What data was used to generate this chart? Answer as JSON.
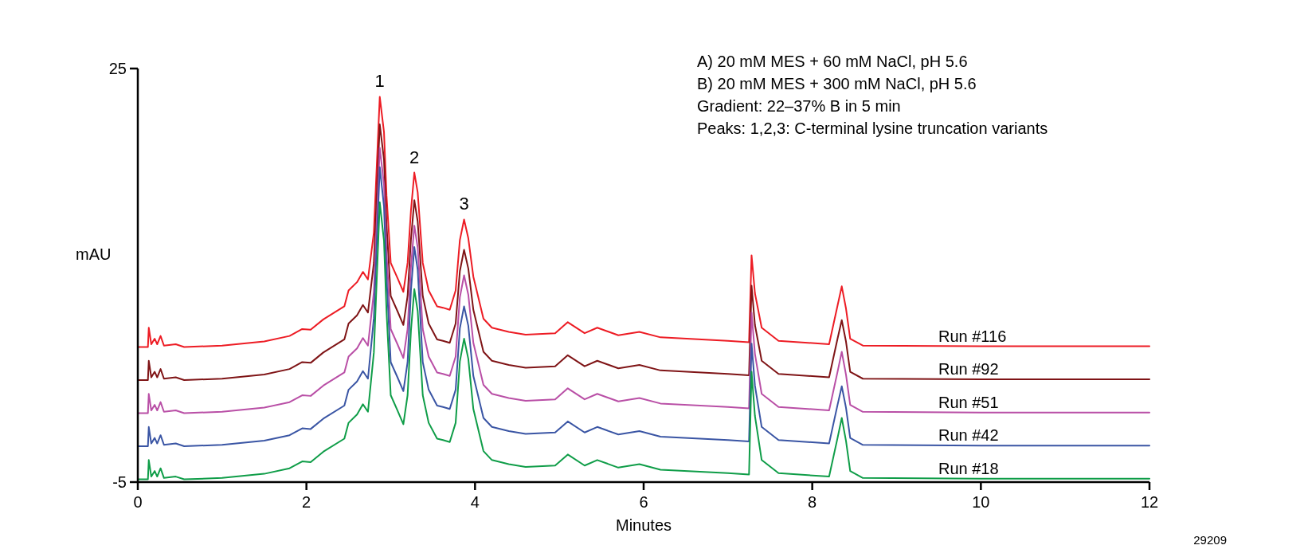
{
  "chart_data": {
    "type": "line",
    "xlabel": "Minutes",
    "ylabel": "mAU",
    "xlim": [
      0,
      12
    ],
    "xticks": [
      0,
      2,
      4,
      6,
      8,
      10,
      12
    ],
    "ylim": [
      -5,
      25
    ],
    "yticks": [
      -5,
      25
    ],
    "grid": false,
    "legend": false,
    "marker": "none",
    "line_style": "solid",
    "x": [
      0,
      0.12,
      0.13,
      0.16,
      0.2,
      0.23,
      0.27,
      0.31,
      0.45,
      0.55,
      1.0,
      1.5,
      1.8,
      1.95,
      2.05,
      2.2,
      2.45,
      2.5,
      2.6,
      2.67,
      2.73,
      2.8,
      2.87,
      2.92,
      2.95,
      3.0,
      3.08,
      3.15,
      3.2,
      3.24,
      3.28,
      3.32,
      3.38,
      3.45,
      3.55,
      3.62,
      3.7,
      3.77,
      3.82,
      3.87,
      3.92,
      3.98,
      4.1,
      4.2,
      4.4,
      4.6,
      4.95,
      5.1,
      5.3,
      5.45,
      5.7,
      5.95,
      6.2,
      7.0,
      7.25,
      7.28,
      7.32,
      7.4,
      7.6,
      8.2,
      8.3,
      8.35,
      8.4,
      8.45,
      8.6,
      10,
      12
    ],
    "series": [
      {
        "name": "Run #116",
        "color": "#ed1c24",
        "values": [
          4.8,
          4.8,
          6.2,
          5.0,
          5.4,
          5.0,
          5.6,
          4.9,
          5.0,
          4.8,
          4.9,
          5.2,
          5.6,
          6.1,
          6.05,
          6.8,
          7.75,
          8.9,
          9.5,
          10.25,
          9.7,
          13.1,
          22.95,
          20.4,
          15.8,
          10.9,
          9.8,
          8.8,
          10.9,
          14.7,
          17.45,
          16.0,
          10.9,
          8.9,
          7.75,
          7.65,
          7.5,
          8.9,
          12.55,
          14.05,
          12.7,
          9.9,
          6.85,
          6.2,
          5.9,
          5.7,
          5.8,
          6.6,
          5.8,
          6.2,
          5.65,
          5.9,
          5.5,
          5.25,
          5.15,
          11.45,
          8.7,
          6.2,
          5.25,
          5.0,
          7.8,
          9.2,
          7.6,
          5.4,
          4.9,
          4.85,
          4.85
        ]
      },
      {
        "name": "Run #92",
        "color": "#7f1416",
        "values": [
          2.4,
          2.4,
          3.8,
          2.6,
          3.0,
          2.6,
          3.2,
          2.5,
          2.6,
          2.4,
          2.5,
          2.8,
          3.2,
          3.7,
          3.65,
          4.4,
          5.35,
          6.5,
          7.1,
          7.85,
          7.3,
          10.9,
          20.95,
          18.4,
          13.7,
          8.5,
          7.4,
          6.4,
          8.5,
          12.6,
          15.45,
          13.9,
          8.5,
          6.5,
          5.35,
          5.25,
          5.1,
          6.5,
          10.3,
          11.85,
          10.5,
          7.5,
          4.45,
          3.8,
          3.5,
          3.3,
          3.4,
          4.2,
          3.4,
          3.8,
          3.25,
          3.5,
          3.1,
          2.85,
          2.75,
          9.25,
          6.4,
          3.8,
          2.85,
          2.6,
          5.4,
          6.75,
          5.2,
          3.0,
          2.5,
          2.45,
          2.45
        ]
      },
      {
        "name": "Run #51",
        "color": "#b94fa6",
        "values": [
          0,
          0,
          1.4,
          0.2,
          0.6,
          0.2,
          0.8,
          0.1,
          0.2,
          0,
          0.1,
          0.4,
          0.8,
          1.3,
          1.25,
          2.0,
          2.95,
          4.1,
          4.7,
          5.45,
          4.9,
          8.8,
          19.25,
          16.6,
          11.7,
          6.1,
          5.0,
          4.0,
          6.1,
          10.6,
          13.6,
          12.0,
          6.1,
          4.1,
          2.95,
          2.85,
          2.7,
          4.1,
          8.4,
          10.0,
          8.6,
          5.1,
          2.05,
          1.4,
          1.1,
          0.9,
          1.0,
          1.8,
          1.0,
          1.4,
          0.85,
          1.1,
          0.7,
          0.45,
          0.35,
          7.3,
          4.3,
          1.4,
          0.45,
          0.2,
          3.0,
          4.45,
          2.8,
          0.6,
          0.1,
          0.05,
          0.05
        ]
      },
      {
        "name": "Run #42",
        "color": "#3a55a4",
        "values": [
          -2.4,
          -2.4,
          -1.0,
          -2.2,
          -1.8,
          -2.2,
          -1.6,
          -2.3,
          -2.2,
          -2.4,
          -2.3,
          -2.0,
          -1.6,
          -1.1,
          -1.15,
          -0.4,
          0.55,
          1.7,
          2.3,
          3.05,
          2.5,
          6.9,
          17.85,
          15.0,
          9.9,
          3.7,
          2.6,
          1.6,
          3.7,
          8.9,
          12.05,
          10.4,
          3.7,
          1.7,
          0.55,
          0.45,
          0.3,
          1.7,
          6.15,
          7.75,
          6.35,
          2.7,
          -0.35,
          -1.0,
          -1.3,
          -1.5,
          -1.4,
          -0.6,
          -1.4,
          -1.0,
          -1.55,
          -1.3,
          -1.7,
          -1.95,
          -2.05,
          5.05,
          2.0,
          -1.0,
          -1.95,
          -2.2,
          0.6,
          1.95,
          0.4,
          -1.8,
          -2.3,
          -2.35,
          -2.35
        ]
      },
      {
        "name": "Run #18",
        "color": "#0f9d48",
        "values": [
          -4.8,
          -4.8,
          -3.4,
          -4.6,
          -4.2,
          -4.6,
          -4.0,
          -4.7,
          -4.6,
          -4.8,
          -4.7,
          -4.4,
          -4.0,
          -3.5,
          -3.55,
          -2.8,
          -1.85,
          -0.7,
          -0.1,
          0.65,
          0.1,
          4.4,
          15.3,
          12.5,
          7.4,
          1.3,
          0.2,
          -0.8,
          1.3,
          6.0,
          9.0,
          7.4,
          1.3,
          -0.7,
          -1.85,
          -1.95,
          -2.1,
          -0.7,
          3.75,
          5.4,
          3.95,
          0.3,
          -2.75,
          -3.4,
          -3.7,
          -3.9,
          -3.8,
          -3.0,
          -3.8,
          -3.4,
          -3.95,
          -3.7,
          -4.1,
          -4.35,
          -4.45,
          3.0,
          -0.2,
          -3.4,
          -4.35,
          -4.6,
          -1.8,
          -0.35,
          -2.0,
          -4.2,
          -4.7,
          -4.75,
          -4.75
        ]
      }
    ],
    "annotations": [
      {
        "text": "1",
        "x": 2.87,
        "y": 22.95
      },
      {
        "text": "2",
        "x": 3.28,
        "y": 17.45
      },
      {
        "text": "3",
        "x": 3.87,
        "y": 14.05
      },
      "A) 20 mM MES + 60 mM NaCl, pH 5.6",
      "B) 20 mM MES + 300 mM NaCl, pH 5.6",
      "Gradient: 22–37% B in 5 min",
      "Peaks: 1,2,3: C-terminal lysine truncation variants",
      "29209"
    ]
  }
}
